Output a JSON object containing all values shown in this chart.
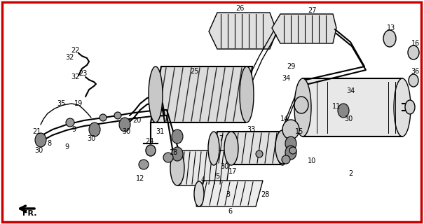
{
  "bg_color": "#ffffff",
  "border_color": "#cc0000",
  "border_width": 2.5,
  "fig_width": 6.05,
  "fig_height": 3.2,
  "dpi": 100
}
